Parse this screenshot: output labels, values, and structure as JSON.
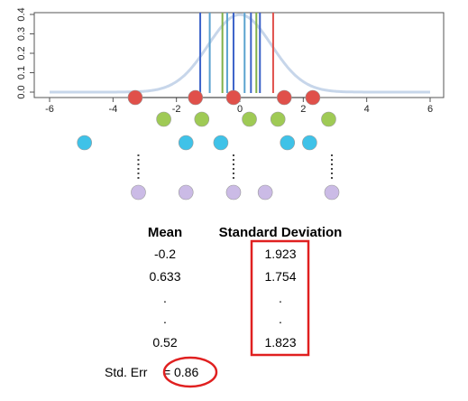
{
  "chart_data": {
    "type": "scatter",
    "xlim": [
      -6,
      6
    ],
    "ylim": [
      0,
      0.4
    ],
    "x_ticks": [
      "-6",
      "-4",
      "-2",
      "0",
      "2",
      "4",
      "6"
    ],
    "y_ticks": [
      "0.0",
      "0.1",
      "0.2",
      "0.3",
      "0.4"
    ],
    "density": {
      "mean": 0,
      "sd": 1,
      "color": "#c7d6ea"
    },
    "vertical_lines": [
      {
        "x": -1.25,
        "color": "#3c63c9"
      },
      {
        "x": -0.95,
        "color": "#5aa2cf"
      },
      {
        "x": -0.55,
        "color": "#7fb04a"
      },
      {
        "x": -0.4,
        "color": "#5aa2cf"
      },
      {
        "x": -0.2,
        "color": "#3c63c9"
      },
      {
        "x": 0.15,
        "color": "#5aa2cf"
      },
      {
        "x": 0.35,
        "color": "#3c63c9"
      },
      {
        "x": 0.52,
        "color": "#7fb04a"
      },
      {
        "x": 0.633,
        "color": "#3c63c9"
      },
      {
        "x": 1.05,
        "color": "#e0504a"
      }
    ],
    "samples": [
      {
        "color": "#e0504a",
        "x": [
          -3.3,
          -1.4,
          -0.2,
          1.4,
          2.3
        ]
      },
      {
        "color": "#9fca55",
        "x": [
          -2.4,
          -1.2,
          0.3,
          1.2,
          2.8
        ]
      },
      {
        "color": "#3fc2e8",
        "x": [
          -4.9,
          -1.7,
          -0.6,
          1.5,
          2.2
        ]
      },
      {
        "color": "#cbbbe6",
        "x": [
          -3.2,
          -1.7,
          -0.2,
          0.8,
          2.9
        ]
      }
    ],
    "dotted_columns_x": [
      -3.2,
      -0.2,
      2.9
    ],
    "table": {
      "headers": [
        "Mean",
        "Standard Deviation"
      ],
      "rows": [
        [
          "-0.2",
          "1.923"
        ],
        [
          "0.633",
          "1.754"
        ],
        [
          ".",
          "."
        ],
        [
          ".",
          "."
        ],
        [
          "0.52",
          "1.823"
        ]
      ]
    },
    "std_err": {
      "label": "Std. Err",
      "equals": "=",
      "value": "0.86"
    },
    "highlight_color": "#e02020"
  }
}
